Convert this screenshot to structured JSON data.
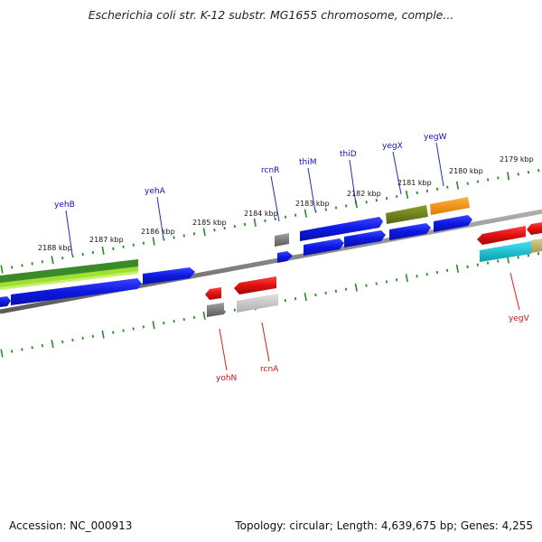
{
  "title": "Escherichia coli str. K-12 substr. MG1655 chromosome, comple...",
  "footer": {
    "accession": "Accession: NC_000913",
    "summary": "Topology: circular; Length: 4,639,675 bp; Genes: 4,255"
  },
  "kbp_labels": [
    "2188 kbp",
    "2187 kbp",
    "2186 kbp",
    "2185 kbp",
    "2184 kbp",
    "2183 kbp",
    "2182 kbp",
    "2181 kbp",
    "2180 kbp",
    "2179 kbp"
  ],
  "gene_labels_forward": [
    "yehB",
    "yehA",
    "rcnR",
    "thiM",
    "thiD",
    "yegX",
    "yegW"
  ],
  "gene_labels_reverse": [
    "yohN",
    "rcnA",
    "yegV"
  ],
  "colors": {
    "forward_label": "#1010c0",
    "reverse_label": "#d01010",
    "backbone": "#7a7a7a",
    "tick": "#2a8a2a",
    "blue_gene": "#0c18e0",
    "red_gene": "#e01010",
    "olive_gene": "#6b7d1e",
    "orange_gene": "#f08a10",
    "green_gene": "#2a8a2a",
    "cyan_gene": "#10c0d0",
    "gray_gene": "#808080"
  }
}
